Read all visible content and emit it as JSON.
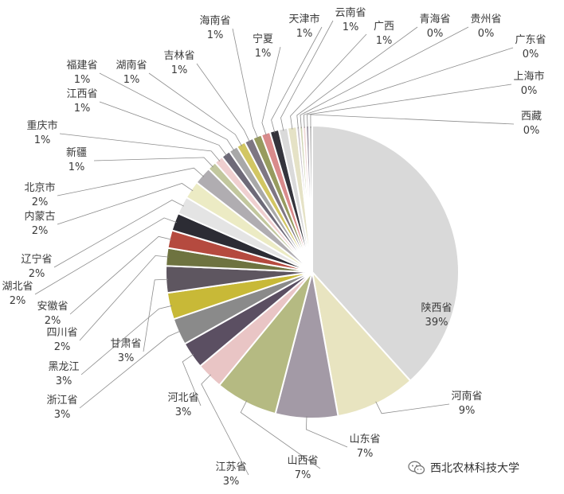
{
  "chart_data": {
    "type": "pie",
    "title": "",
    "slices": [
      {
        "name": "陕西省",
        "value": 39,
        "pct": "39%",
        "color": "#d9d9d9"
      },
      {
        "name": "河南省",
        "value": 9,
        "pct": "9%",
        "color": "#e8e4c0"
      },
      {
        "name": "山东省",
        "value": 7,
        "pct": "7%",
        "color": "#a39aa6"
      },
      {
        "name": "山西省",
        "value": 7,
        "pct": "7%",
        "color": "#b5ba82"
      },
      {
        "name": "江苏省",
        "value": 3,
        "pct": "3%",
        "color": "#e9c5c5"
      },
      {
        "name": "河北省",
        "value": 3,
        "pct": "3%",
        "color": "#5b4f62"
      },
      {
        "name": "浙江省",
        "value": 3,
        "pct": "3%",
        "color": "#8a8a8a"
      },
      {
        "name": "黑龙江",
        "value": 3,
        "pct": "3%",
        "color": "#c8b937"
      },
      {
        "name": "甘肃省",
        "value": 3,
        "pct": "3%",
        "color": "#5e5660"
      },
      {
        "name": "四川省",
        "value": 2,
        "pct": "2%",
        "color": "#6e7340"
      },
      {
        "name": "安徽省",
        "value": 2,
        "pct": "2%",
        "color": "#b54a3f"
      },
      {
        "name": "湖北省",
        "value": 2,
        "pct": "2%",
        "color": "#2c2c34"
      },
      {
        "name": "辽宁省",
        "value": 2,
        "pct": "2%",
        "color": "#e4e4e4"
      },
      {
        "name": "内蒙古",
        "value": 2,
        "pct": "2%",
        "color": "#ecebc4"
      },
      {
        "name": "北京市",
        "value": 2,
        "pct": "2%",
        "color": "#b0adb1"
      },
      {
        "name": "新疆",
        "value": 1,
        "pct": "1%",
        "color": "#c2c79e"
      },
      {
        "name": "重庆市",
        "value": 1,
        "pct": "1%",
        "color": "#efcfcf"
      },
      {
        "name": "江西省",
        "value": 1,
        "pct": "1%",
        "color": "#6e6a78"
      },
      {
        "name": "福建省",
        "value": 1,
        "pct": "1%",
        "color": "#a8a8a8"
      },
      {
        "name": "湖南省",
        "value": 1,
        "pct": "1%",
        "color": "#d2c663"
      },
      {
        "name": "吉林省",
        "value": 1,
        "pct": "1%",
        "color": "#7e7683"
      },
      {
        "name": "海南省",
        "value": 1,
        "pct": "1%",
        "color": "#979b5f"
      },
      {
        "name": "宁夏",
        "value": 1,
        "pct": "1%",
        "color": "#d98b8b"
      },
      {
        "name": "天津市",
        "value": 1,
        "pct": "1%",
        "color": "#34343c"
      },
      {
        "name": "云南省",
        "value": 1,
        "pct": "1%",
        "color": "#dadada"
      },
      {
        "name": "广西",
        "value": 1,
        "pct": "1%",
        "color": "#e5e2c6"
      },
      {
        "name": "青海省",
        "value": 0.35,
        "pct": "0%",
        "color": "#c9c3cb"
      },
      {
        "name": "贵州省",
        "value": 0.35,
        "pct": "0%",
        "color": "#d1d5b4"
      },
      {
        "name": "广东省",
        "value": 0.35,
        "pct": "0%",
        "color": "#f0d8d8"
      },
      {
        "name": "上海市",
        "value": 0.35,
        "pct": "0%",
        "color": "#a29aa8"
      },
      {
        "name": "西藏",
        "value": 0.35,
        "pct": "0%",
        "color": "#c0c0c0"
      }
    ]
  },
  "watermark": {
    "icon": "wechat-icon",
    "text": "西北农林科技大学"
  }
}
